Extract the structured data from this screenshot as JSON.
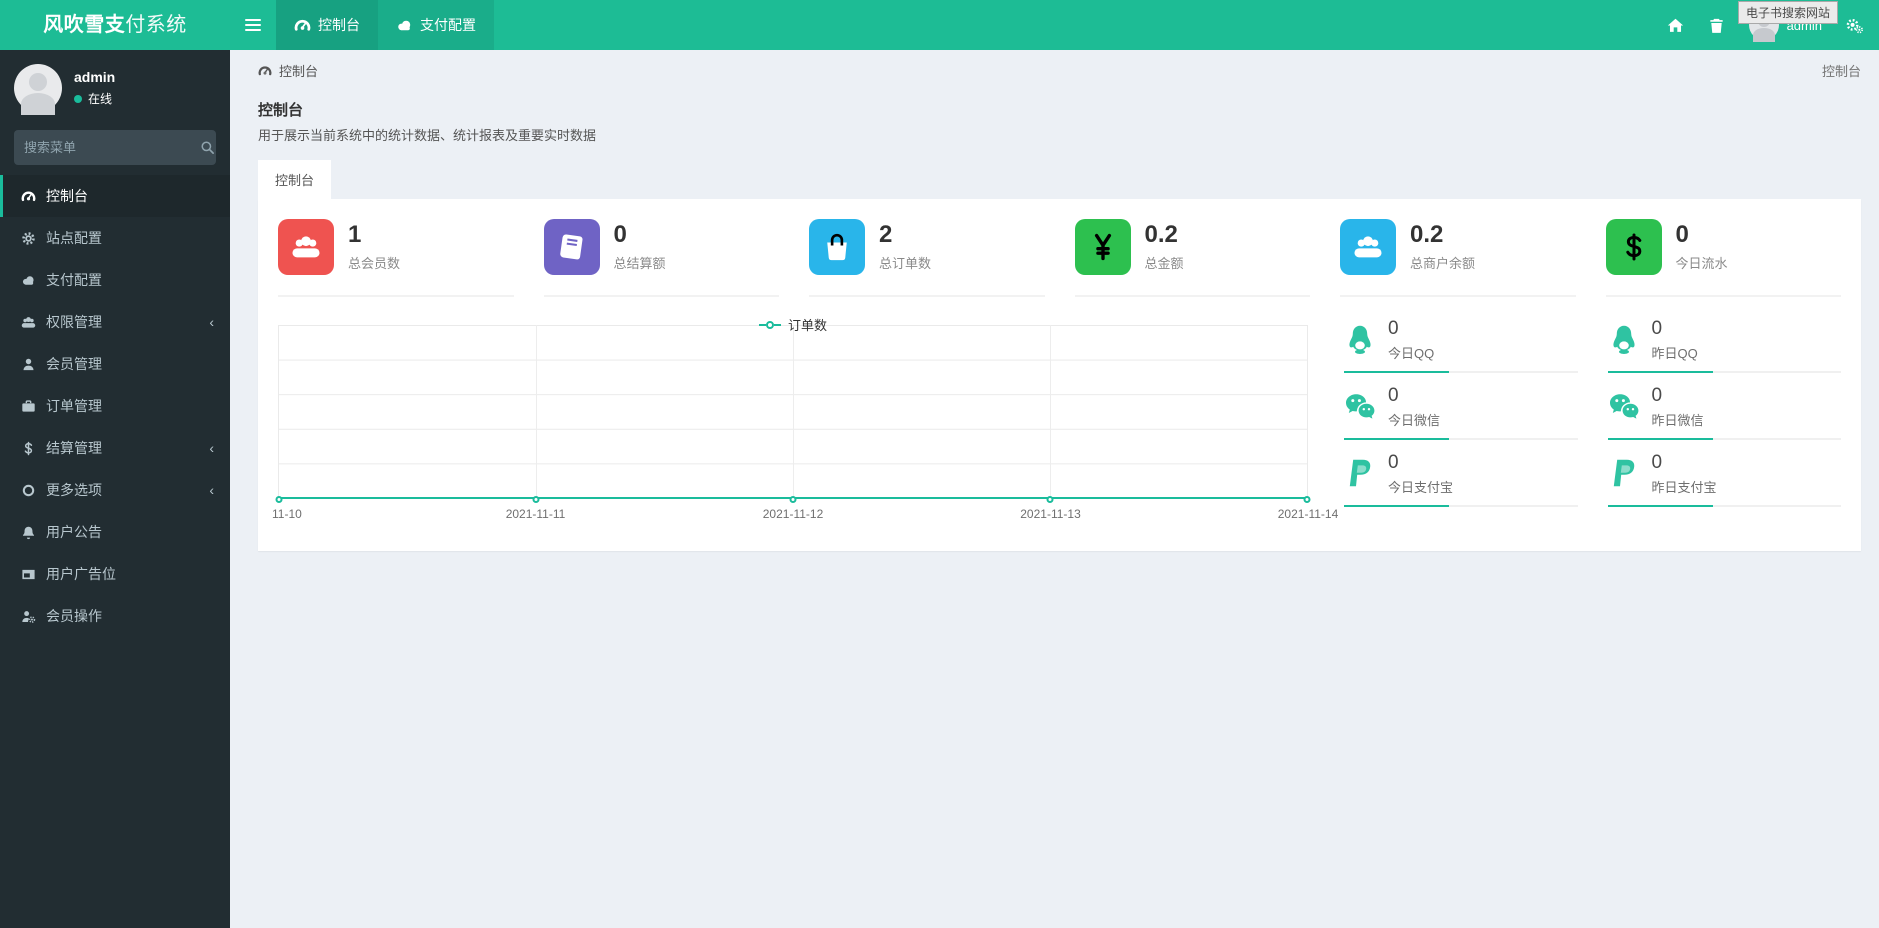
{
  "app": {
    "brand_bold": "风吹雪支",
    "brand_rest": "付系统"
  },
  "navbar": {
    "tabs": [
      {
        "label": "控制台"
      },
      {
        "label": "支付配置"
      }
    ],
    "user_name": "admin",
    "tooltip": "电子书搜索网站"
  },
  "sidebar": {
    "user": {
      "name": "admin",
      "status": "在线"
    },
    "search_placeholder": "搜索菜单",
    "items": [
      {
        "label": "控制台"
      },
      {
        "label": "站点配置"
      },
      {
        "label": "支付配置"
      },
      {
        "label": "权限管理"
      },
      {
        "label": "会员管理"
      },
      {
        "label": "订单管理"
      },
      {
        "label": "结算管理"
      },
      {
        "label": "更多选项"
      },
      {
        "label": "用户公告"
      },
      {
        "label": "用户广告位"
      },
      {
        "label": "会员操作"
      }
    ]
  },
  "content": {
    "breadcrumb": {
      "left": "控制台",
      "right": "控制台"
    },
    "panel": {
      "title": "控制台",
      "subtitle": "用于展示当前系统中的统计数据、统计报表及重要实时数据",
      "tab": "控制台"
    },
    "stats": [
      {
        "value": "1",
        "label": "总会员数",
        "color": "#ef5350"
      },
      {
        "value": "0",
        "label": "总结算额",
        "color": "#6f63c5"
      },
      {
        "value": "2",
        "label": "总订单数",
        "color": "#29b5ea"
      },
      {
        "value": "0.2",
        "label": "总金额",
        "color": "#2dc04f"
      },
      {
        "value": "0.2",
        "label": "总商户余额",
        "color": "#29b5ea"
      },
      {
        "value": "0",
        "label": "今日流水",
        "color": "#2dc04f"
      }
    ],
    "mini_stats": [
      {
        "value": "0",
        "label": "今日QQ"
      },
      {
        "value": "0",
        "label": "昨日QQ"
      },
      {
        "value": "0",
        "label": "今日微信"
      },
      {
        "value": "0",
        "label": "昨日微信"
      },
      {
        "value": "0",
        "label": "今日支付宝"
      },
      {
        "value": "0",
        "label": "昨日支付宝"
      }
    ]
  },
  "chart_data": {
    "type": "line",
    "legend": [
      "订单数"
    ],
    "legend_position": "top-center",
    "x": [
      "11-10",
      "2021-11-11",
      "2021-11-12",
      "2021-11-13",
      "2021-11-14"
    ],
    "series": [
      {
        "name": "订单数",
        "values": [
          0,
          0,
          0,
          0,
          0
        ]
      }
    ],
    "ylim": [
      0,
      1
    ],
    "grid": true,
    "line_color": "#1abc9c"
  },
  "colors": {
    "navbar": "#1dbc95",
    "navbar_tab_active": "#17a181",
    "navbar_tab_secondary": "#1aad8a",
    "sidebar_bg": "#222d32",
    "accent": "#1abc9c",
    "page_bg": "#ecf0f5",
    "mini_icon": "#2fc3a2"
  }
}
